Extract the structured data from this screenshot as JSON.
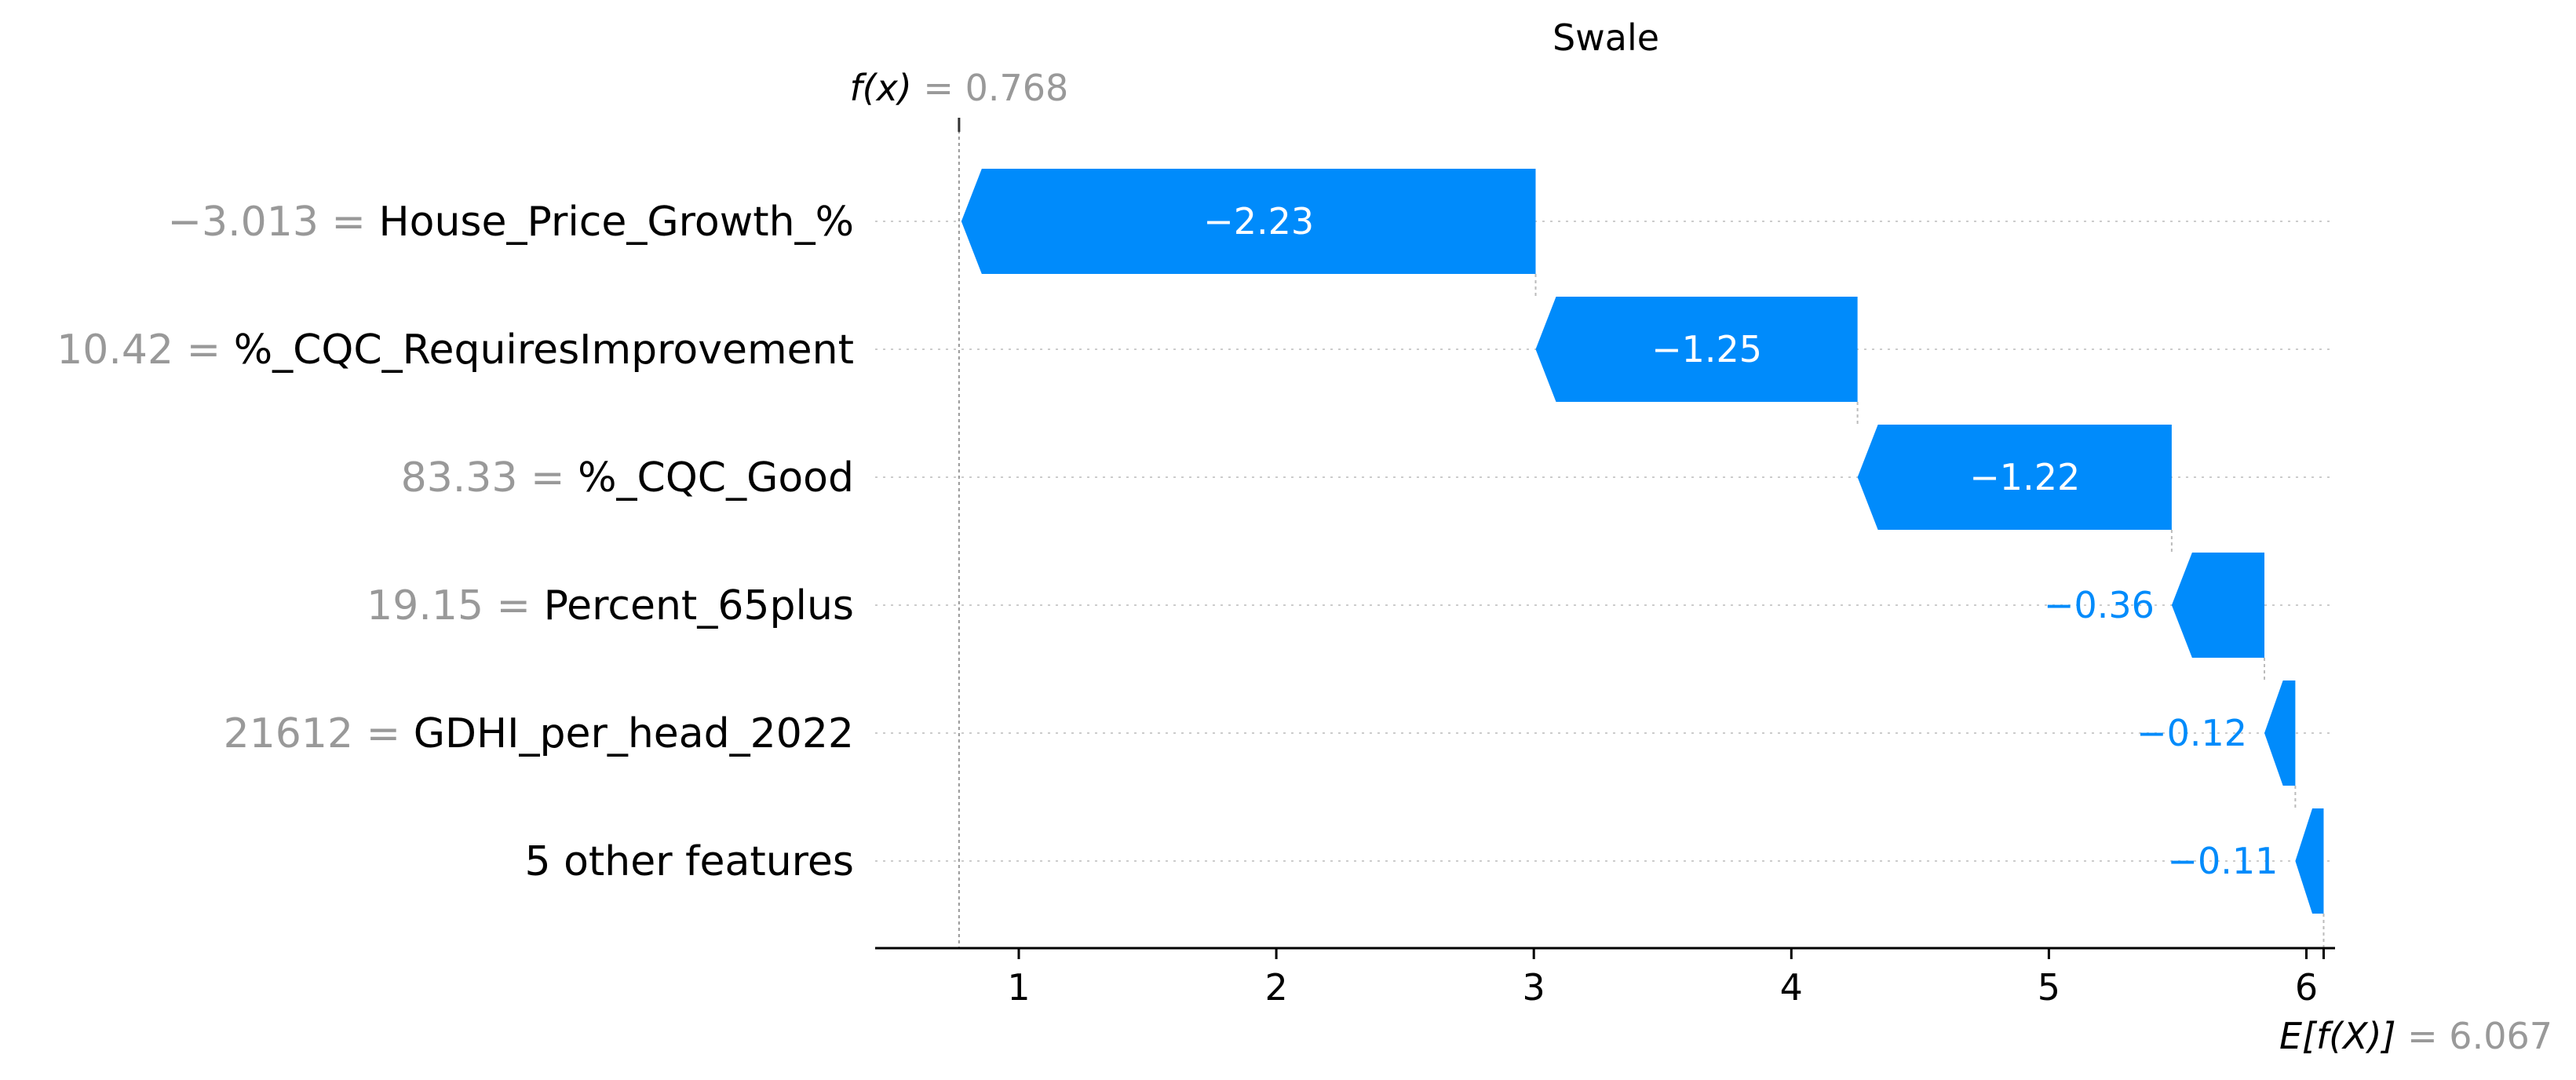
{
  "chart_data": {
    "type": "waterfall",
    "title": "Swale",
    "x_ticks": [
      1,
      2,
      3,
      4,
      5,
      6
    ],
    "xlim": [
      0.45,
      6.1
    ],
    "base_value": 6.067,
    "base_value_label": "= 6.067",
    "base_value_symbol": "E[f(X)]",
    "output_value": 0.768,
    "output_value_label": "= 0.768",
    "output_value_symbol": "f(x)",
    "color_negative": "#008bfb",
    "features": [
      {
        "value_text": "−3.013 =",
        "name": "House_Price_Growth_%",
        "shap": -2.23,
        "shap_label": "−2.23"
      },
      {
        "value_text": "10.42 =",
        "name": "%_CQC_RequiresImprovement",
        "shap": -1.25,
        "shap_label": "−1.25"
      },
      {
        "value_text": "83.33 =",
        "name": "%_CQC_Good",
        "shap": -1.22,
        "shap_label": "−1.22"
      },
      {
        "value_text": "19.15 =",
        "name": "Percent_65plus",
        "shap": -0.36,
        "shap_label": "−0.36"
      },
      {
        "value_text": "21612 =",
        "name": "GDHI_per_head_2022",
        "shap": -0.12,
        "shap_label": "−0.12"
      },
      {
        "value_text": "",
        "name": "5 other features",
        "shap": -0.11,
        "shap_label": "−0.11"
      }
    ]
  }
}
